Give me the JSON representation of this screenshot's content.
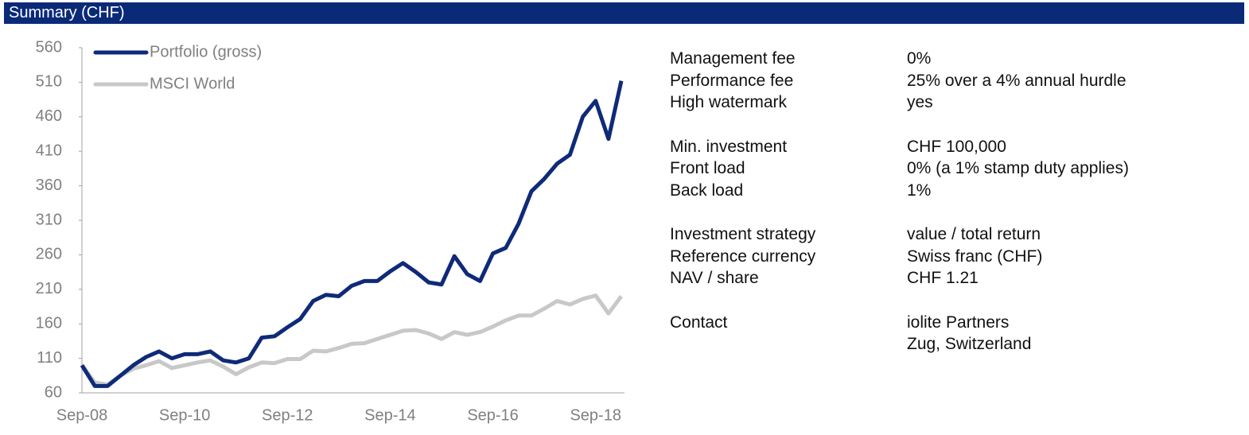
{
  "header": {
    "title": "Summary (CHF)"
  },
  "chart_data": {
    "type": "line",
    "categories": [
      "Sep-08",
      null,
      null,
      null,
      null,
      null,
      null,
      null,
      "Sep-10",
      null,
      null,
      null,
      null,
      null,
      null,
      null,
      "Sep-12",
      null,
      null,
      null,
      null,
      null,
      null,
      null,
      "Sep-14",
      null,
      null,
      null,
      null,
      null,
      null,
      null,
      "Sep-16",
      null,
      null,
      null,
      null,
      null,
      null,
      null,
      "Sep-18",
      null,
      null
    ],
    "series": [
      {
        "name": "Portfolio (gross)",
        "color": "#0f2a78",
        "values": [
          100,
          70,
          70,
          85,
          100,
          112,
          120,
          110,
          116,
          116,
          120,
          107,
          104,
          110,
          140,
          142,
          155,
          167,
          193,
          202,
          200,
          215,
          222,
          222,
          236,
          248,
          235,
          220,
          217,
          258,
          232,
          222,
          262,
          270,
          305,
          352,
          370,
          392,
          405,
          460,
          483,
          428,
          512
        ]
      },
      {
        "name": "MSCI World",
        "color": "#c8c8c8",
        "values": [
          100,
          75,
          72,
          85,
          95,
          100,
          106,
          96,
          100,
          104,
          107,
          98,
          87,
          97,
          104,
          103,
          109,
          109,
          121,
          120,
          125,
          131,
          132,
          138,
          144,
          150,
          151,
          146,
          138,
          148,
          144,
          148,
          156,
          165,
          172,
          172,
          182,
          193,
          188,
          196,
          201,
          175,
          200
        ]
      }
    ],
    "ylim": [
      60,
      560
    ],
    "yticks": [
      60,
      110,
      160,
      210,
      260,
      310,
      360,
      410,
      460,
      510,
      560
    ],
    "legend": "upper left"
  },
  "facts": {
    "groups": [
      [
        {
          "label": "Management fee",
          "value": [
            "0%"
          ]
        },
        {
          "label": "Performance fee",
          "value": [
            "25% over a 4% annual hurdle"
          ]
        },
        {
          "label": "High watermark",
          "value": [
            "yes"
          ]
        }
      ],
      [
        {
          "label": "Min. investment",
          "value": [
            "CHF 100,000"
          ]
        },
        {
          "label": "Front load",
          "value": [
            "0% (a 1% stamp duty applies)"
          ]
        },
        {
          "label": "Back load",
          "value": [
            "1%"
          ]
        }
      ],
      [
        {
          "label": "Investment strategy",
          "value": [
            "value / total return"
          ]
        },
        {
          "label": "Reference currency",
          "value": [
            "Swiss franc (CHF)"
          ]
        },
        {
          "label": "NAV / share",
          "value": [
            "CHF 1.21"
          ]
        }
      ],
      [
        {
          "label": "Contact",
          "value": [
            "iolite Partners",
            "Zug, Switzerland"
          ]
        }
      ]
    ]
  }
}
